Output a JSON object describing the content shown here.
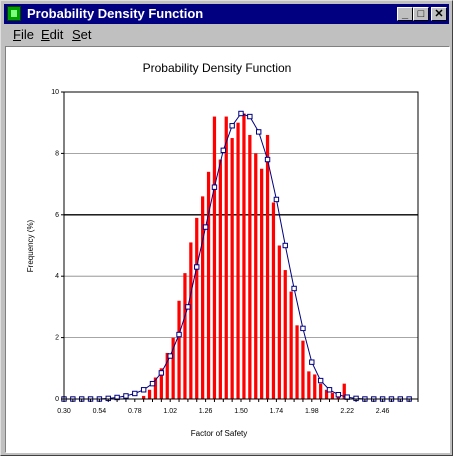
{
  "window": {
    "title": "Probability Density Function",
    "buttons": {
      "minimize": "_",
      "maximize": "□",
      "close": "✕"
    }
  },
  "menu": {
    "items": [
      {
        "accel": "F",
        "rest": "ile"
      },
      {
        "accel": "E",
        "rest": "dit"
      },
      {
        "accel": "S",
        "rest": "et"
      }
    ]
  },
  "colors": {
    "bars": "#ff0000",
    "curve": "#000080",
    "titlebar": "#000080"
  },
  "chart_data": {
    "type": "bar",
    "title": "Probability Density Function",
    "xlabel": "Factor of Safety",
    "ylabel": "Frequency (%)",
    "ylim": [
      0,
      10
    ],
    "xlim": [
      0.3,
      2.7
    ],
    "x_ticks": [
      "0.30",
      "0.54",
      "0.78",
      "1.02",
      "1.26",
      "1.50",
      "1.74",
      "1.98",
      "2.22",
      "2.46"
    ],
    "y_ticks": [
      "0",
      "2",
      "4",
      "6",
      "8",
      "10"
    ],
    "grid": "horizontal",
    "bars": {
      "x": [
        0.84,
        0.88,
        0.92,
        0.96,
        1.0,
        1.04,
        1.08,
        1.12,
        1.16,
        1.2,
        1.24,
        1.28,
        1.32,
        1.36,
        1.4,
        1.44,
        1.48,
        1.52,
        1.56,
        1.6,
        1.64,
        1.68,
        1.72,
        1.76,
        1.8,
        1.84,
        1.88,
        1.92,
        1.96,
        2.0,
        2.04,
        2.08,
        2.12,
        2.16,
        2.2
      ],
      "values": [
        0.1,
        0.3,
        0.7,
        1.0,
        1.5,
        2.0,
        3.2,
        4.1,
        5.1,
        5.9,
        6.6,
        7.4,
        9.2,
        7.8,
        9.2,
        8.5,
        9.0,
        9.3,
        8.6,
        8.0,
        7.5,
        8.6,
        6.4,
        5.0,
        4.2,
        3.5,
        2.4,
        1.9,
        0.9,
        0.8,
        0.5,
        0.3,
        0.2,
        0.2,
        0.5
      ]
    },
    "curve": {
      "x": [
        0.3,
        0.36,
        0.42,
        0.48,
        0.54,
        0.6,
        0.66,
        0.72,
        0.78,
        0.84,
        0.9,
        0.96,
        1.02,
        1.08,
        1.14,
        1.2,
        1.26,
        1.32,
        1.38,
        1.44,
        1.5,
        1.56,
        1.62,
        1.68,
        1.74,
        1.8,
        1.86,
        1.92,
        1.98,
        2.04,
        2.1,
        2.16,
        2.22,
        2.28,
        2.34,
        2.4,
        2.46,
        2.52,
        2.58,
        2.64
      ],
      "values": [
        0,
        0,
        0,
        0,
        0,
        0.02,
        0.05,
        0.1,
        0.18,
        0.3,
        0.5,
        0.85,
        1.4,
        2.1,
        3.0,
        4.3,
        5.6,
        6.9,
        8.1,
        8.9,
        9.3,
        9.2,
        8.7,
        7.8,
        6.5,
        5.0,
        3.6,
        2.3,
        1.2,
        0.6,
        0.3,
        0.14,
        0.06,
        0.02,
        0,
        0,
        0,
        0,
        0,
        0
      ]
    }
  }
}
